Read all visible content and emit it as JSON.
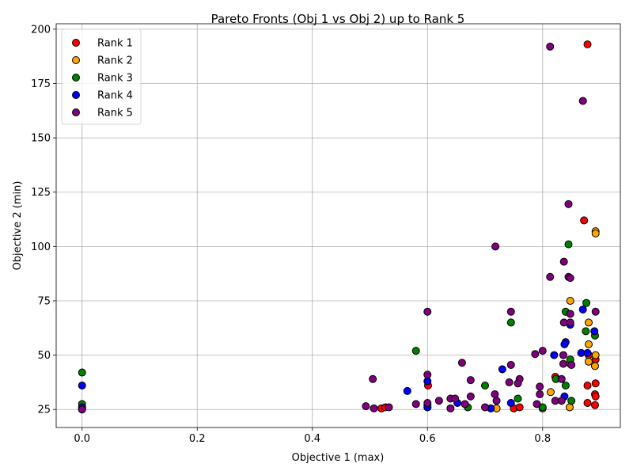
{
  "chart_data": {
    "type": "scatter",
    "title": "Pareto Fronts (Obj 1 vs Obj 2) up to Rank 5",
    "xlabel": "Objective 1 (max)",
    "ylabel": "Objective 2 (min)",
    "xlim": [
      -0.045,
      0.935
    ],
    "ylim": [
      16.7,
      202.5
    ],
    "xticks": [
      0.0,
      0.2,
      0.4,
      0.6,
      0.8
    ],
    "xtick_labels": [
      "0.0",
      "0.2",
      "0.4",
      "0.6",
      "0.8"
    ],
    "yticks": [
      25,
      50,
      75,
      100,
      125,
      150,
      175,
      200
    ],
    "ytick_labels": [
      "25",
      "50",
      "75",
      "100",
      "125",
      "150",
      "175",
      "200"
    ],
    "grid": true,
    "legend_position": "top-left",
    "series": [
      {
        "name": "Rank 1",
        "color": "#ff0000",
        "points": [
          [
            0.878,
            193
          ],
          [
            0.872,
            112
          ],
          [
            0.892,
            37
          ],
          [
            0.878,
            36
          ],
          [
            0.891,
            32
          ],
          [
            0.892,
            31
          ],
          [
            0.878,
            28
          ],
          [
            0.891,
            27
          ],
          [
            0.822,
            40
          ],
          [
            0.601,
            36
          ],
          [
            0.52,
            25.5
          ],
          [
            0.527,
            26
          ],
          [
            0.75,
            25.5
          ],
          [
            0.76,
            26
          ],
          [
            0.0,
            25.5
          ],
          [
            0.892,
            48
          ],
          [
            0.88,
            50
          ]
        ]
      },
      {
        "name": "Rank 2",
        "color": "#ffa500",
        "points": [
          [
            0.892,
            107
          ],
          [
            0.892,
            106
          ],
          [
            0.848,
            75
          ],
          [
            0.88,
            65
          ],
          [
            0.88,
            55
          ],
          [
            0.88,
            47
          ],
          [
            0.891,
            45
          ],
          [
            0.892,
            50
          ],
          [
            0.848,
            46
          ],
          [
            0.814,
            33
          ],
          [
            0.847,
            26
          ],
          [
            0.8,
            25.5
          ],
          [
            0.72,
            25.5
          ],
          [
            0.6,
            26
          ],
          [
            0.0,
            25.5
          ]
        ]
      },
      {
        "name": "Rank 3",
        "color": "#008000",
        "points": [
          [
            0.0,
            42
          ],
          [
            0.0,
            27.5
          ],
          [
            0.58,
            52
          ],
          [
            0.745,
            65
          ],
          [
            0.845,
            101
          ],
          [
            0.876,
            74
          ],
          [
            0.84,
            70
          ],
          [
            0.891,
            59
          ],
          [
            0.875,
            61
          ],
          [
            0.848,
            48
          ],
          [
            0.823,
            39
          ],
          [
            0.84,
            36
          ],
          [
            0.7,
            36
          ],
          [
            0.85,
            29
          ],
          [
            0.757,
            30
          ],
          [
            0.67,
            26
          ],
          [
            0.6,
            27
          ],
          [
            0.8,
            26
          ]
        ]
      },
      {
        "name": "Rank 4",
        "color": "#0000ff",
        "points": [
          [
            0.0,
            36
          ],
          [
            0.565,
            33.5
          ],
          [
            0.6,
            38
          ],
          [
            0.73,
            43.5
          ],
          [
            0.84,
            56
          ],
          [
            0.838,
            55
          ],
          [
            0.82,
            50
          ],
          [
            0.867,
            51
          ],
          [
            0.878,
            51
          ],
          [
            0.89,
            61
          ],
          [
            0.848,
            64
          ],
          [
            0.87,
            71
          ],
          [
            0.838,
            31
          ],
          [
            0.745,
            28
          ],
          [
            0.652,
            28
          ],
          [
            0.6,
            26
          ],
          [
            0.71,
            25.5
          ],
          [
            0.0,
            26
          ]
        ]
      },
      {
        "name": "Rank 5",
        "color": "#800080",
        "points": [
          [
            0.813,
            192
          ],
          [
            0.87,
            167
          ],
          [
            0.845,
            119.5
          ],
          [
            0.718,
            100
          ],
          [
            0.837,
            93
          ],
          [
            0.813,
            86
          ],
          [
            0.845,
            86
          ],
          [
            0.848,
            85.5
          ],
          [
            0.848,
            69
          ],
          [
            0.892,
            70
          ],
          [
            0.745,
            70
          ],
          [
            0.6,
            70
          ],
          [
            0.837,
            65
          ],
          [
            0.848,
            65
          ],
          [
            0.8,
            52
          ],
          [
            0.787,
            50.5
          ],
          [
            0.836,
            50
          ],
          [
            0.66,
            46.5
          ],
          [
            0.836,
            46
          ],
          [
            0.745,
            45.5
          ],
          [
            0.85,
            45.5
          ],
          [
            0.505,
            39
          ],
          [
            0.675,
            38.5
          ],
          [
            0.6,
            41
          ],
          [
            0.76,
            39
          ],
          [
            0.757,
            37
          ],
          [
            0.742,
            37.5
          ],
          [
            0.833,
            39
          ],
          [
            0.795,
            35.5
          ],
          [
            0.795,
            32
          ],
          [
            0.717,
            32
          ],
          [
            0.675,
            31
          ],
          [
            0.64,
            30
          ],
          [
            0.648,
            30
          ],
          [
            0.62,
            29
          ],
          [
            0.72,
            29
          ],
          [
            0.822,
            29
          ],
          [
            0.833,
            29
          ],
          [
            0.79,
            27.5
          ],
          [
            0.58,
            27.5
          ],
          [
            0.6,
            28
          ],
          [
            0.665,
            27.5
          ],
          [
            0.493,
            26.5
          ],
          [
            0.507,
            25.5
          ],
          [
            0.533,
            26
          ],
          [
            0.64,
            25.5
          ],
          [
            0.7,
            26
          ],
          [
            0.0,
            25
          ]
        ]
      }
    ]
  }
}
